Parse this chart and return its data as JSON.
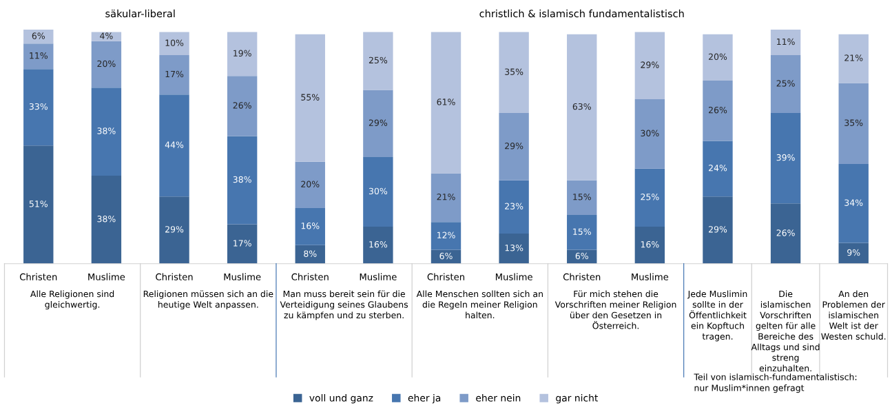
{
  "chart_data": {
    "type": "bar",
    "stacked": true,
    "legend": "bottom",
    "grid": false,
    "categories": [
      "Christen",
      "Muslime",
      "Christen",
      "Muslime",
      "Christen",
      "Muslime",
      "Christen",
      "Muslime",
      "Christen",
      "Muslime",
      null,
      null,
      null
    ],
    "series": [
      {
        "name": "voll und ganz",
        "color": "#3b6493",
        "values": [
          51,
          38,
          29,
          17,
          8,
          16,
          6,
          13,
          6,
          16,
          29,
          26,
          9
        ],
        "value_labels": [
          "51%",
          "38%",
          "29%",
          "17%",
          "8%",
          "16%",
          "6%",
          "13%",
          "6%",
          "16%",
          "29%",
          "26%",
          "9%"
        ]
      },
      {
        "name": "eher ja",
        "color": "#4776af",
        "values": [
          33,
          38,
          44,
          38,
          16,
          30,
          12,
          23,
          15,
          25,
          24,
          39,
          34
        ],
        "value_labels": [
          "33%",
          "38%",
          "44%",
          "38%",
          "16%",
          "30%",
          "12%",
          "23%",
          "15%",
          "25%",
          "24%",
          "39%",
          "34%"
        ]
      },
      {
        "name": "eher nein",
        "color": "#7e9bc8",
        "values": [
          11,
          20,
          17,
          26,
          20,
          29,
          21,
          29,
          15,
          30,
          26,
          25,
          35
        ],
        "value_labels": [
          "11%",
          "20%",
          "17%",
          "26%",
          "20%",
          "29%",
          "21%",
          "29%",
          "15%",
          "30%",
          "26%",
          "25%",
          "35%"
        ]
      },
      {
        "name": "gar nicht",
        "color": "#b4c2de",
        "values": [
          6,
          4,
          10,
          19,
          55,
          25,
          61,
          35,
          63,
          29,
          20,
          11,
          21
        ],
        "value_labels": [
          "6%",
          "4%",
          "10%",
          "19%",
          "55%",
          "25%",
          "61%",
          "35%",
          "63%",
          "29%",
          "20%",
          "11%",
          "21%"
        ]
      }
    ],
    "annotations": [
      "säkular-liberal",
      "christlich & islamisch fundamentalistisch",
      "Alle Religionen sind\ngleichwertig.",
      "Religionen müssen sich an die\nheutige Welt anpassen.",
      "Man muss bereit sein für die\nVerteidigung seines Glaubens\nzu kämpfen und zu sterben.",
      "Alle Menschen sollten sich an\ndie Regeln meiner Religion\nhalten.",
      "Für mich stehen die\nVorschriften meiner Religion\nüber den Gesetzen in\nÖsterreich.",
      "Jede Muslimin\nsollte in der\nÖffentlichkeit\nein Kopftuch\ntragen.",
      "Die\nislamischen\nVorschriften\ngelten für alle\nBereiche des\nAlltags und sind\nstreng\neinzuhalten.",
      "An den\nProblemen der\nislamischen\nWelt ist der\nWesten schuld.",
      "Teil von islamisch-fundamentalistisch:\nnur Muslim*innen gefragt"
    ]
  }
}
